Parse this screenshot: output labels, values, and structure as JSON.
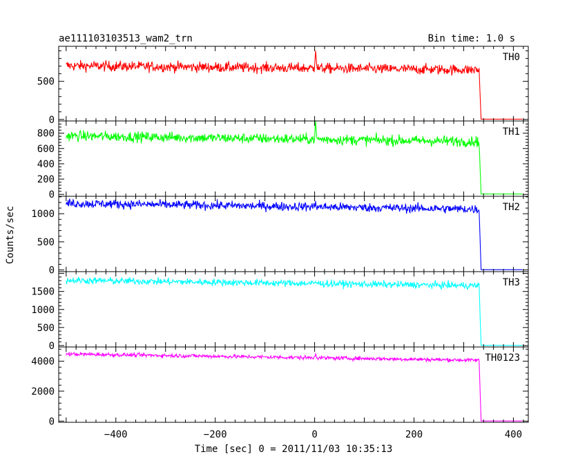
{
  "chart_data": {
    "type": "line",
    "title": "ae111103103513_wam2_trn",
    "bin_time_label": "Bin time: 1.0 s",
    "xlabel": "Time [sec] 0 = 2011/11/03 10:35:13",
    "ylabel": "Counts/sec",
    "xlim": [
      -515,
      430
    ],
    "x_ticks": [
      -400,
      -200,
      0,
      200,
      400
    ],
    "grid": false,
    "panels": [
      {
        "name": "TH0",
        "color": "#ff0000",
        "ylim": [
          -20,
          960
        ],
        "y_ticks": [
          0,
          500
        ],
        "start": 705,
        "end": 650,
        "noise": 34,
        "drop_time": 335,
        "after": 3,
        "spike_time": 2,
        "spike_height": 260
      },
      {
        "name": "TH1",
        "color": "#00ff00",
        "ylim": [
          -25,
          960
        ],
        "y_ticks": [
          0,
          200,
          400,
          600,
          800
        ],
        "start": 765,
        "end": 690,
        "noise": 34,
        "drop_time": 335,
        "after": 5,
        "spike_time": 2,
        "spike_height": 180
      },
      {
        "name": "TH2",
        "color": "#0000ff",
        "ylim": [
          -30,
          1310
        ],
        "y_ticks": [
          0,
          500,
          1000
        ],
        "start": 1185,
        "end": 1080,
        "noise": 40,
        "drop_time": 335,
        "after": 5,
        "spike_time": 2,
        "spike_height": 80
      },
      {
        "name": "TH3",
        "color": "#00ffff",
        "ylim": [
          -40,
          2050
        ],
        "y_ticks": [
          0,
          500,
          1000,
          1500
        ],
        "start": 1810,
        "end": 1660,
        "noise": 48,
        "drop_time": 335,
        "after": 5,
        "spike_time": 2,
        "spike_height": 60
      },
      {
        "name": "TH0123",
        "color": "#ff00ff",
        "ylim": [
          -80,
          4950
        ],
        "y_ticks": [
          0,
          2000,
          4000
        ],
        "start": 4480,
        "end": 4060,
        "noise": 65,
        "drop_time": 335,
        "after": 10,
        "spike_time": 2,
        "spike_height": 320
      }
    ]
  }
}
